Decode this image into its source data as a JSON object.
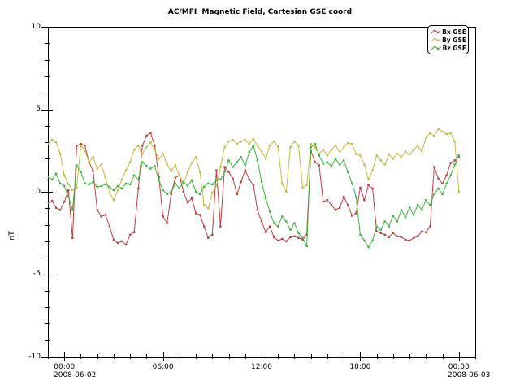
{
  "page": {
    "background": "#ffffff"
  },
  "chart_data": {
    "type": "line",
    "title": "AC/MFI  Magnetic Field, Cartesian GSE coord",
    "ylabel": "nT",
    "ylim": [
      -10,
      10
    ],
    "xlim_hours": [
      -1,
      25
    ],
    "grid": false,
    "legend_position": "top-right",
    "marker": "square",
    "x_axis": {
      "major_tick_hours": [
        0,
        6,
        12,
        18,
        24
      ],
      "major_tick_labels": [
        "00:00",
        "06:00",
        "12:00",
        "18:00",
        "00:00"
      ],
      "minor_tick_interval_hours": 1,
      "date_label_start": "2008-06-02",
      "date_label_end": "2008-06-03"
    },
    "y_axis": {
      "major_ticks": [
        -10,
        -5,
        0,
        5,
        10
      ],
      "major_tick_labels": [
        "-10",
        "-5",
        "0",
        "5",
        "10"
      ],
      "minor_tick_interval": 1
    },
    "sampling": {
      "x_start_hour": -1,
      "x_step_hour": 0.25
    },
    "series": [
      {
        "name": "Bx GSE",
        "color": "#bc4040",
        "values": [
          -0.7,
          -0.55,
          -0.97,
          -1.1,
          -0.6,
          0.1,
          -2.8,
          2.8,
          2.9,
          2.8,
          1.8,
          1.25,
          -1.1,
          -1.5,
          -1.4,
          -2.1,
          -2.9,
          -3.1,
          -3.0,
          -3.2,
          -2.6,
          -2.45,
          0.2,
          2.8,
          3.4,
          3.55,
          2.8,
          0.9,
          -1.5,
          -1.9,
          -0.15,
          0.85,
          1.0,
          0.0,
          -0.65,
          -0.4,
          -1.3,
          -1.4,
          -2.1,
          -2.8,
          -2.6,
          1.3,
          -2.1,
          1.5,
          1.2,
          0.8,
          -0.15,
          0.6,
          1.3,
          0.75,
          0.4,
          -1.1,
          -1.8,
          -2.45,
          -2.1,
          -2.75,
          -2.95,
          -2.85,
          -3.0,
          -2.75,
          -2.7,
          -2.8,
          -2.9,
          -2.6,
          2.5,
          1.8,
          1.6,
          -0.6,
          -0.5,
          -0.8,
          -1.1,
          -0.96,
          -0.3,
          -0.8,
          -1.45,
          -1.3,
          0.25,
          -0.5,
          0.4,
          0.2,
          -2.4,
          -2.5,
          -2.6,
          -2.75,
          -2.5,
          -2.7,
          -2.75,
          -2.9,
          -2.95,
          -2.8,
          -2.7,
          -2.4,
          -2.45,
          -2.1,
          1.5,
          0.8,
          0.5,
          1.0,
          1.75,
          1.9,
          2.1
        ]
      },
      {
        "name": "By GSE",
        "color": "#c2ba45",
        "values": [
          2.9,
          3.15,
          3.0,
          2.3,
          1.0,
          0.45,
          0.1,
          0.25,
          2.8,
          2.5,
          1.8,
          2.1,
          1.4,
          1.65,
          0.85,
          -0.05,
          -0.5,
          0.1,
          0.75,
          1.3,
          1.8,
          2.55,
          2.8,
          2.3,
          2.7,
          3.0,
          2.5,
          2.0,
          2.3,
          1.65,
          1.25,
          1.6,
          1.0,
          0.5,
          1.2,
          1.75,
          2.1,
          1.2,
          -0.8,
          -1.0,
          -0.05,
          0.35,
          1.5,
          2.7,
          3.05,
          3.15,
          2.9,
          3.05,
          3.15,
          2.9,
          3.2,
          2.8,
          2.45,
          2.0,
          2.8,
          3.05,
          2.75,
          0.5,
          0.0,
          2.7,
          3.05,
          2.8,
          0.25,
          0.4,
          2.9,
          2.7,
          2.3,
          2.55,
          2.2,
          2.55,
          2.8,
          2.45,
          2.7,
          2.95,
          2.9,
          2.3,
          2.2,
          1.65,
          0.75,
          1.3,
          2.2,
          1.9,
          1.65,
          2.25,
          2.0,
          2.3,
          2.1,
          2.45,
          2.25,
          2.55,
          2.8,
          2.45,
          3.3,
          3.55,
          3.4,
          3.8,
          3.65,
          3.5,
          3.55,
          3.05,
          0.0
        ]
      },
      {
        "name": "Bz GSE",
        "color": "#3eb43e",
        "values": [
          0.9,
          0.75,
          1.1,
          0.5,
          0.35,
          -0.3,
          -1.1,
          1.6,
          1.2,
          0.5,
          0.45,
          0.6,
          0.3,
          0.35,
          0.45,
          0.3,
          0.1,
          0.35,
          0.2,
          0.5,
          0.45,
          1.0,
          0.75,
          1.8,
          1.55,
          1.4,
          1.55,
          0.7,
          0.1,
          -0.15,
          0.0,
          0.5,
          0.2,
          0.6,
          0.35,
          0.7,
          0.0,
          -0.15,
          0.3,
          0.5,
          0.45,
          0.7,
          0.75,
          1.2,
          1.9,
          1.5,
          1.8,
          2.1,
          1.6,
          2.4,
          2.8,
          1.9,
          0.6,
          -0.4,
          -1.2,
          -1.9,
          -2.1,
          -1.5,
          -1.8,
          -2.3,
          -1.9,
          -2.5,
          -2.8,
          -3.3,
          2.7,
          2.9,
          2.2,
          1.7,
          1.8,
          1.55,
          2.0,
          1.65,
          1.9,
          1.2,
          0.5,
          -0.3,
          -2.6,
          -2.95,
          -3.35,
          -2.95,
          -2.1,
          -2.3,
          -1.8,
          -2.1,
          -1.45,
          -1.8,
          -1.1,
          -1.55,
          -0.95,
          -1.4,
          -0.8,
          -1.1,
          -0.5,
          -0.8,
          -0.15,
          0.2,
          -0.15,
          0.5,
          1.0,
          1.65,
          2.2
        ]
      }
    ]
  }
}
